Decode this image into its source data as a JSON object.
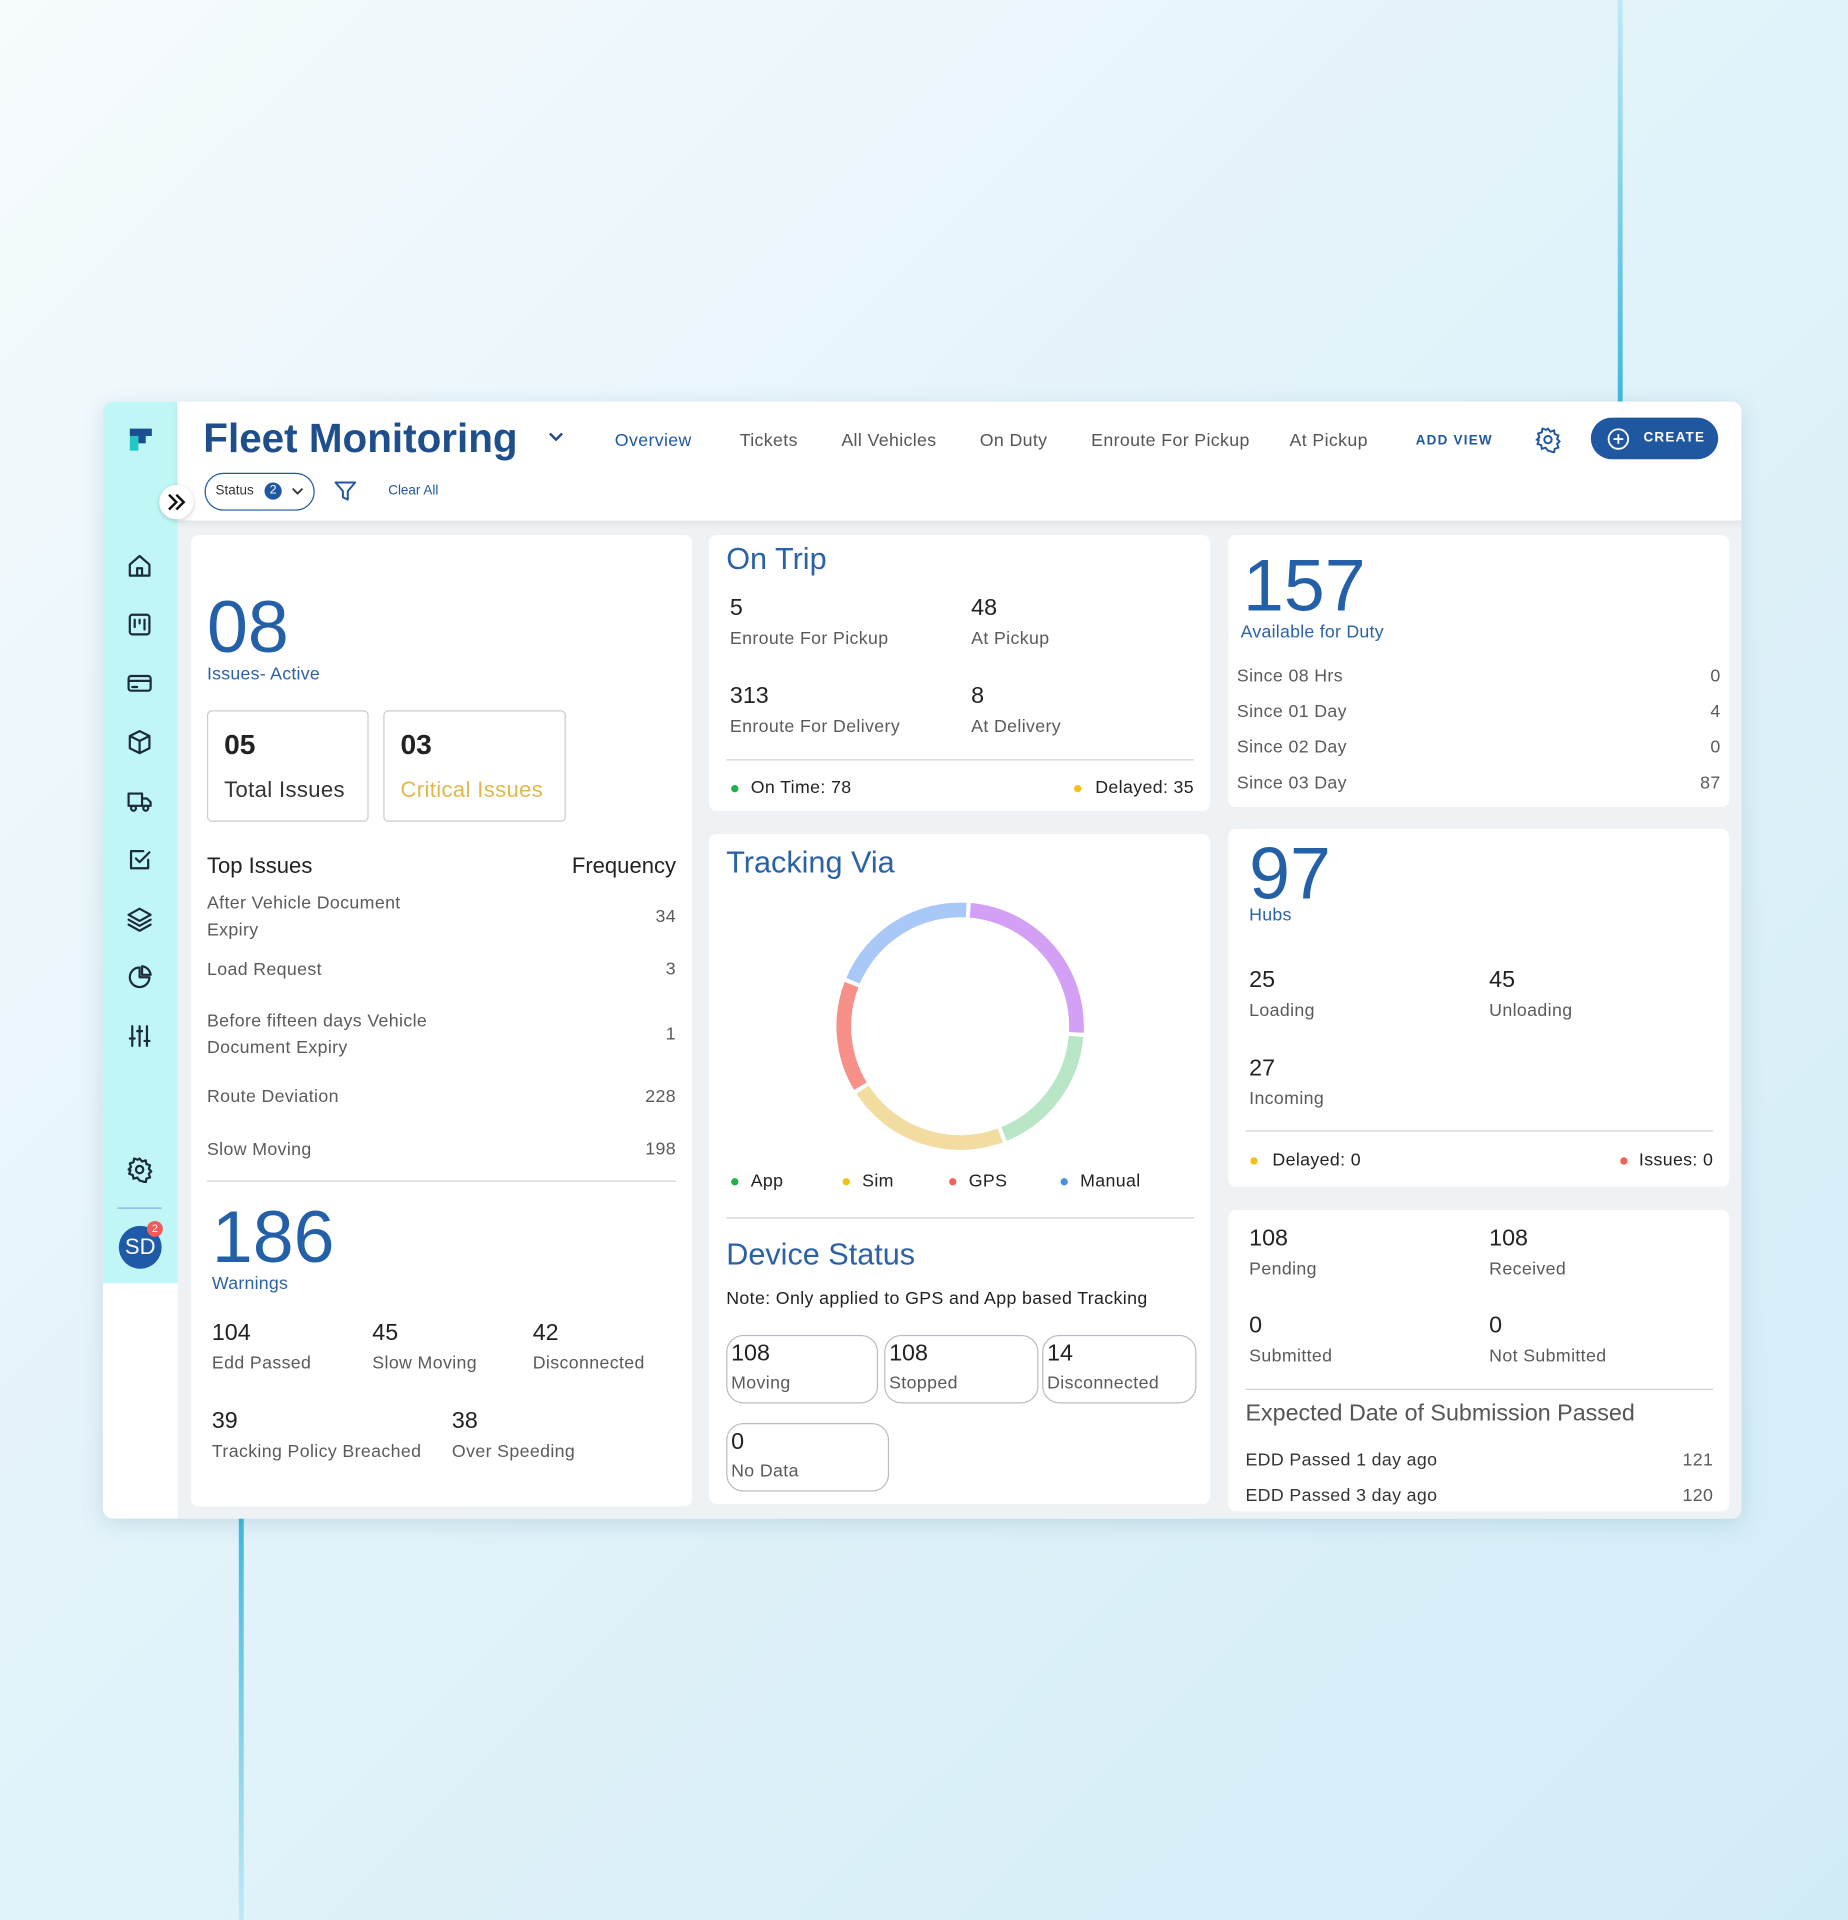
{
  "app": {
    "title": "Fleet Monitoring",
    "avatar": "SD",
    "avatar_badge": 2
  },
  "nav": {
    "tabs": [
      "Overview",
      "Tickets",
      "All Vehicles",
      "On Duty",
      "Enroute For Pickup",
      "At Pickup"
    ],
    "add_view": "ADD VIEW",
    "create": "CREATE"
  },
  "filters": {
    "status_label": "Status",
    "status_count": 2,
    "clear_all": "Clear All"
  },
  "issues": {
    "count": "08",
    "label": "Issues- Active",
    "total": {
      "value": "05",
      "label": "Total Issues"
    },
    "critical": {
      "value": "03",
      "label": "Critical Issues"
    },
    "top_header": "Top Issues",
    "frequency_header": "Frequency",
    "rows": [
      [
        "After Vehicle Document Expiry",
        34
      ],
      [
        "Load Request",
        3
      ],
      [
        "Before fifteen days Vehicle Document Expiry",
        1
      ],
      [
        "Route Deviation",
        228
      ],
      [
        "Slow Moving",
        198
      ]
    ]
  },
  "warnings": {
    "count": 186,
    "label": "Warnings",
    "items": [
      {
        "value": 104,
        "label": "Edd Passed"
      },
      {
        "value": 45,
        "label": "Slow Moving"
      },
      {
        "value": 42,
        "label": "Disconnected"
      },
      {
        "value": 39,
        "label": "Tracking Policy Breached"
      },
      {
        "value": 38,
        "label": "Over Speeding"
      }
    ]
  },
  "on_trip": {
    "title": "On Trip",
    "items": [
      {
        "value": 5,
        "label": "Enroute For Pickup"
      },
      {
        "value": 48,
        "label": "At Pickup"
      },
      {
        "value": 313,
        "label": "Enroute For Delivery"
      },
      {
        "value": 8,
        "label": "At Delivery"
      }
    ],
    "on_time": "On Time: 78",
    "delayed": "Delayed: 35"
  },
  "tracking": {
    "title": "Tracking Via",
    "segments": [
      {
        "name": "App",
        "value": 18,
        "color": "#b9e6c6",
        "legend_color": "#22b14c"
      },
      {
        "name": "Sim",
        "value": 22,
        "color": "#f2dca0",
        "legend_color": "#f2c018"
      },
      {
        "name": "GPS",
        "value": 15,
        "color": "#f8908a",
        "legend_color": "#f0625a"
      },
      {
        "name": "Manual",
        "value": 20,
        "color": "#a8c8f8",
        "legend_color": "#4a90e2"
      },
      {
        "name": null,
        "value": 25,
        "color": "#d3a0f5",
        "legend_color": null
      }
    ]
  },
  "device_status": {
    "title": "Device Status",
    "note": "Note: Only applied to GPS and App based Tracking",
    "items": [
      {
        "value": 108,
        "label": "Moving"
      },
      {
        "value": 108,
        "label": "Stopped"
      },
      {
        "value": 14,
        "label": "Disconnected"
      },
      {
        "value": 0,
        "label": "No Data"
      }
    ]
  },
  "available": {
    "count": 157,
    "label": "Available for Duty",
    "rows": [
      [
        "Since 08 Hrs",
        0
      ],
      [
        "Since 01 Day",
        4
      ],
      [
        "Since 02 Day",
        0
      ],
      [
        "Since 03 Day",
        87
      ]
    ]
  },
  "hubs": {
    "count": 97,
    "label": "Hubs",
    "items": [
      {
        "value": 25,
        "label": "Loading"
      },
      {
        "value": 45,
        "label": "Unloading"
      },
      {
        "value": 27,
        "label": "Incoming"
      }
    ],
    "delayed": "Delayed: 0",
    "issues": "Issues: 0"
  },
  "submission": {
    "items": [
      {
        "value": 108,
        "label": "Pending"
      },
      {
        "value": 108,
        "label": "Received"
      },
      {
        "value": 0,
        "label": "Submitted"
      },
      {
        "value": 0,
        "label": "Not Submitted"
      }
    ],
    "edd_title": "Expected Date of Submission Passed",
    "rows": [
      [
        "EDD Passed 1 day ago",
        121
      ],
      [
        "EDD Passed 3 day ago",
        120
      ]
    ]
  }
}
